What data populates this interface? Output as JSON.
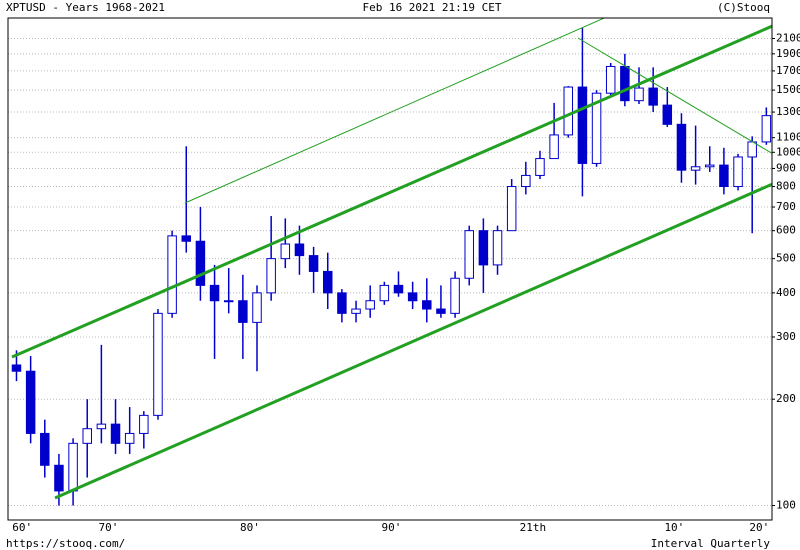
{
  "chart_data": {
    "type": "candlestick",
    "title": "XPTUSD - Years 1968-2021",
    "subtitle": "Feb 16 2021 21:19 CET",
    "credit": "(C)Stooq",
    "source": "https://stooq.com/",
    "interval": "Interval Quarterly",
    "x": [
      1968,
      1969,
      1970,
      1971,
      1972,
      1973,
      1974,
      1975,
      1976,
      1977,
      1978,
      1979,
      1980,
      1981,
      1982,
      1983,
      1984,
      1985,
      1986,
      1987,
      1988,
      1989,
      1990,
      1991,
      1992,
      1993,
      1994,
      1995,
      1996,
      1997,
      1998,
      1999,
      2000,
      2001,
      2002,
      2003,
      2004,
      2005,
      2006,
      2007,
      2008,
      2009,
      2010,
      2011,
      2012,
      2013,
      2014,
      2015,
      2016,
      2017,
      2018,
      2019,
      2020,
      2021
    ],
    "open": [
      250,
      240,
      160,
      130,
      110,
      150,
      165,
      170,
      150,
      160,
      180,
      350,
      580,
      560,
      420,
      380,
      380,
      330,
      400,
      500,
      550,
      510,
      460,
      400,
      350,
      360,
      380,
      420,
      400,
      380,
      360,
      350,
      440,
      600,
      480,
      600,
      800,
      860,
      960,
      1120,
      1530,
      930,
      1470,
      1750,
      1400,
      1520,
      1360,
      1200,
      890,
      910,
      920,
      800,
      970,
      1070
    ],
    "high": [
      275,
      265,
      175,
      140,
      155,
      200,
      285,
      200,
      190,
      185,
      360,
      600,
      1040,
      700,
      480,
      470,
      450,
      420,
      660,
      650,
      620,
      540,
      520,
      410,
      380,
      420,
      430,
      460,
      430,
      440,
      420,
      460,
      620,
      650,
      620,
      840,
      940,
      1010,
      1380,
      1540,
      2250,
      1500,
      1790,
      1900,
      1740,
      1740,
      1530,
      1290,
      1190,
      1040,
      1030,
      990,
      1110,
      1340
    ],
    "low": [
      225,
      150,
      120,
      100,
      100,
      120,
      150,
      140,
      140,
      145,
      175,
      340,
      520,
      380,
      260,
      350,
      260,
      240,
      380,
      470,
      450,
      400,
      360,
      330,
      330,
      340,
      370,
      390,
      360,
      330,
      340,
      340,
      420,
      400,
      450,
      600,
      760,
      840,
      960,
      1100,
      750,
      910,
      1430,
      1350,
      1370,
      1300,
      1180,
      820,
      810,
      880,
      760,
      780,
      590,
      1050
    ],
    "close": [
      240,
      160,
      130,
      110,
      150,
      165,
      170,
      150,
      160,
      180,
      350,
      580,
      560,
      420,
      380,
      380,
      330,
      400,
      500,
      550,
      510,
      460,
      400,
      350,
      360,
      380,
      420,
      400,
      380,
      360,
      350,
      440,
      600,
      480,
      600,
      800,
      860,
      960,
      1120,
      1530,
      930,
      1470,
      1750,
      1400,
      1520,
      1360,
      1200,
      890,
      910,
      920,
      800,
      970,
      1070,
      1270
    ],
    "color": "#0000cc",
    "xlim": [
      1967.9,
      2021.9
    ],
    "xticks": [
      {
        "value": 1968.9,
        "label": "60'"
      },
      {
        "value": 1975,
        "label": "70'"
      },
      {
        "value": 1985,
        "label": "80'"
      },
      {
        "value": 1995,
        "label": "90'"
      },
      {
        "value": 2005,
        "label": "21th"
      },
      {
        "value": 2015,
        "label": "10'"
      },
      {
        "value": 2021,
        "label": "20'"
      }
    ],
    "ylim": [
      91,
      2400
    ],
    "log_scale": true,
    "yticks": [
      100,
      200,
      300,
      400,
      500,
      600,
      700,
      800,
      900,
      1000,
      1100,
      1300,
      1500,
      1700,
      1900,
      2100
    ],
    "grid": true
  }
}
